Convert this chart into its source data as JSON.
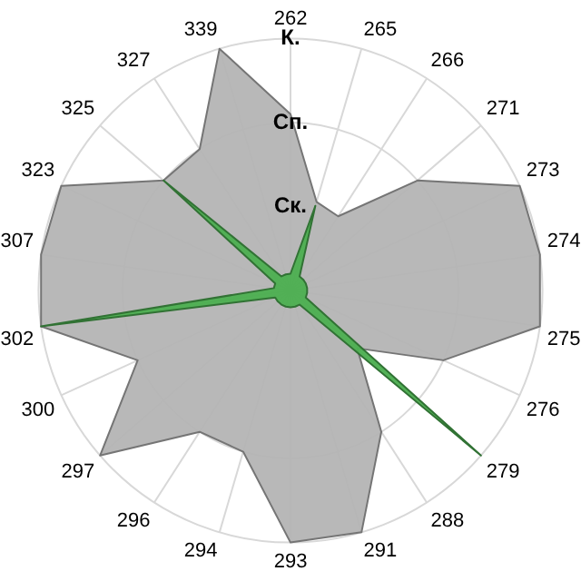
{
  "chart_data": {
    "type": "radar",
    "categories": [
      "262",
      "265",
      "266",
      "271",
      "273",
      "274",
      "275",
      "276",
      "279",
      "288",
      "291",
      "293",
      "294",
      "296",
      "297",
      "300",
      "302",
      "307",
      "323",
      "325",
      "327",
      "339"
    ],
    "series": [
      {
        "color": "#b4b4b4",
        "values": [
          2.1,
          1.1,
          1.05,
          2,
          3,
          3,
          3,
          2,
          1.05,
          2,
          3,
          3,
          2,
          2,
          3,
          2,
          3,
          3,
          3,
          2,
          2,
          3
        ]
      },
      {
        "color": "#4caf50",
        "values": [
          0.2,
          1.05,
          0.2,
          0.2,
          0.2,
          0.2,
          0.2,
          0.2,
          3,
          0.2,
          0.2,
          0.2,
          0.2,
          0.2,
          0.2,
          0.2,
          3,
          0.2,
          0.2,
          2,
          0.2,
          0.2
        ]
      }
    ],
    "ylim": [
      0,
      3
    ],
    "yticks": [
      {
        "value": 1,
        "label": "Ск."
      },
      {
        "value": 2,
        "label": "Сп."
      },
      {
        "value": 3,
        "label": "К."
      }
    ],
    "grid": true,
    "legend": false
  }
}
